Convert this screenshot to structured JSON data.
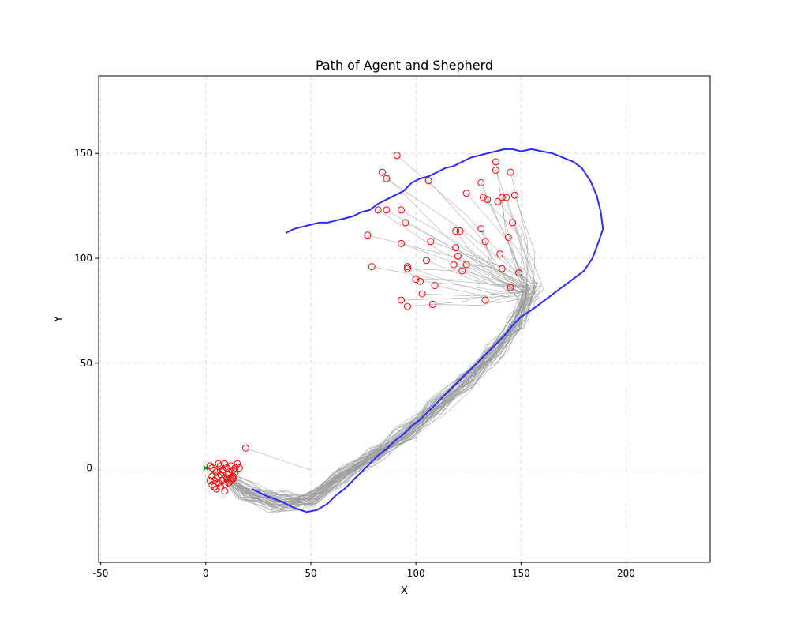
{
  "chart_data": {
    "type": "line",
    "title": "Path of Agent and Shepherd",
    "xlabel": "X",
    "ylabel": "Y",
    "xlim": [
      -51,
      240
    ],
    "ylim": [
      -45,
      187
    ],
    "xticks": [
      -50,
      0,
      50,
      100,
      150,
      200
    ],
    "yticks": [
      0,
      50,
      100,
      150
    ],
    "grid": true,
    "grid_style": "dashed",
    "colors": {
      "shepherd": "#2b2bff",
      "agent_paths": "#9a9a9a",
      "agent_markers": "#ff0000",
      "start_marker": "#008000"
    },
    "start_point": {
      "x": 0,
      "y": 0,
      "marker": "x"
    },
    "shepherd_path": {
      "x": [
        22,
        28,
        36,
        42,
        48,
        53,
        58,
        62,
        66,
        70,
        74,
        78,
        82,
        86,
        90,
        94,
        98,
        102,
        106,
        110,
        114,
        118,
        122,
        126,
        130,
        134,
        138,
        142,
        146,
        150,
        153,
        156,
        160,
        164,
        168,
        172,
        176,
        180,
        184,
        187,
        189,
        188,
        186,
        183,
        179,
        175,
        170,
        165,
        160,
        155,
        150,
        146,
        142,
        138,
        134,
        130,
        126,
        122,
        118,
        114,
        110,
        106,
        102,
        98,
        94,
        90,
        86,
        82,
        78,
        74,
        70,
        66,
        62,
        58,
        54,
        50,
        46,
        42,
        38
      ],
      "y": [
        -10,
        -13,
        -16,
        -19,
        -21,
        -20,
        -17,
        -13,
        -10,
        -6,
        -2,
        2,
        6,
        9,
        13,
        16,
        20,
        23,
        27,
        31,
        35,
        39,
        43,
        47,
        51,
        55,
        59,
        63,
        68,
        72,
        74,
        76,
        79,
        82,
        85,
        88,
        91,
        94,
        100,
        108,
        114,
        122,
        130,
        137,
        143,
        146,
        148,
        150,
        151,
        152,
        151,
        152,
        152,
        151,
        150,
        149,
        148,
        146,
        144,
        143,
        141,
        139,
        138,
        136,
        132,
        130,
        128,
        126,
        123,
        122,
        120,
        119,
        118,
        117,
        117,
        116,
        115,
        114,
        112
      ]
    },
    "agent_final_positions": {
      "x": [
        19,
        2,
        3,
        4,
        5,
        6,
        7,
        8,
        9,
        10,
        11,
        12,
        13,
        14,
        15,
        16,
        3,
        4,
        5,
        6,
        7,
        8,
        9,
        10,
        11,
        12,
        13,
        14,
        2,
        3,
        5,
        7,
        9,
        11,
        13,
        6,
        8,
        10,
        12,
        4,
        91,
        84,
        86,
        106,
        82,
        86,
        93,
        95,
        77,
        93,
        107,
        105,
        96,
        96,
        79,
        100,
        102,
        109,
        103,
        93,
        108,
        96,
        121,
        119,
        119,
        118,
        122,
        124,
        120,
        124,
        131,
        132,
        134,
        138,
        138,
        145,
        141,
        143,
        147,
        139,
        146,
        131,
        133,
        144,
        140,
        141,
        149,
        145,
        133
      ],
      "y": [
        9.5,
        1,
        0,
        -1,
        -2,
        2,
        1,
        -1,
        2,
        0,
        -2,
        1,
        -1,
        0,
        2,
        0,
        -4,
        -6,
        -5,
        -7,
        -3,
        -6,
        -8,
        -5,
        -3,
        -6,
        -4,
        -2,
        -6,
        -8,
        -10,
        -9,
        -11,
        -7,
        -5,
        -4,
        -2,
        -3,
        -5,
        -9,
        149,
        141,
        138,
        137,
        123,
        123,
        123,
        117,
        111,
        107,
        108,
        99,
        96,
        95,
        96,
        90,
        89,
        87,
        83,
        80,
        78,
        77,
        113,
        113,
        105,
        97,
        94,
        97,
        101,
        131,
        136,
        129,
        128,
        146,
        142,
        141,
        129,
        129,
        130,
        127,
        117,
        114,
        108,
        110,
        102,
        95,
        93,
        86,
        80
      ]
    }
  }
}
